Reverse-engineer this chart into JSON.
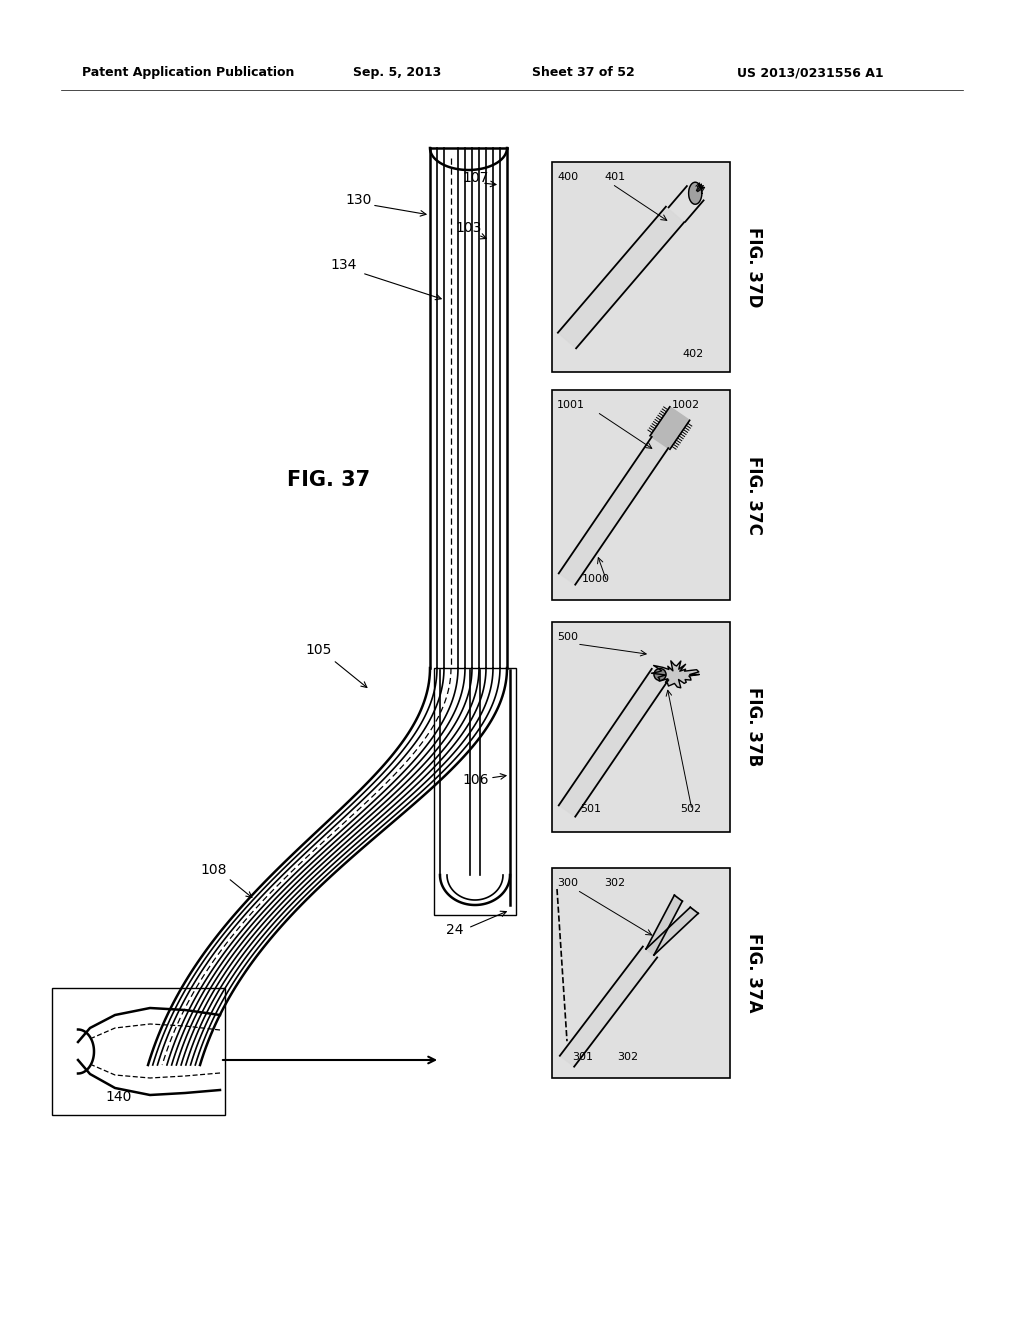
{
  "bg_color": "#ffffff",
  "header_text": "Patent Application Publication",
  "header_date": "Sep. 5, 2013",
  "header_sheet": "Sheet 37 of 52",
  "header_patent": "US 2013/0231556 A1",
  "fig_main_label": "FIG. 37",
  "panel_bg": "#e8e8e8",
  "panel_border": "#000000"
}
